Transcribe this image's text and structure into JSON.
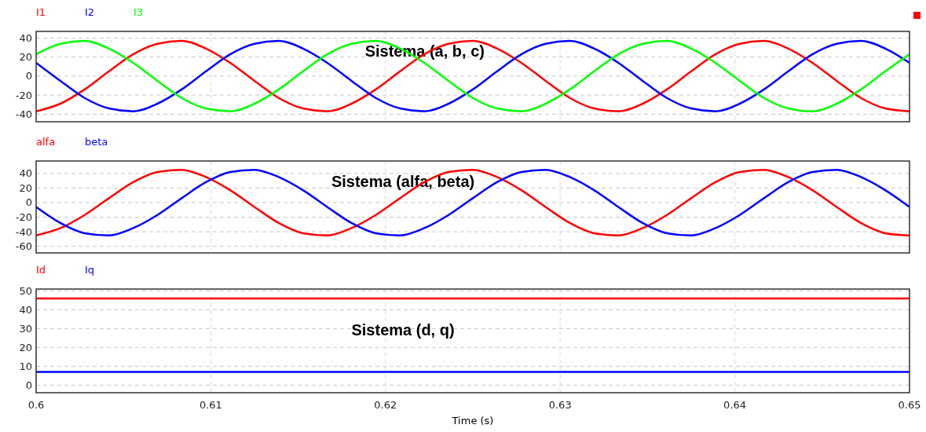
{
  "chart_data": [
    {
      "type": "line",
      "annotations": [
        "Sistema (a, b, c)"
      ],
      "xlim": [
        0.6,
        0.65
      ],
      "xticks": [
        0.6,
        0.61,
        0.62,
        0.63,
        0.64,
        0.65
      ],
      "ylim": [
        -48,
        47
      ],
      "yticks": [
        -40,
        -20,
        0,
        20,
        40
      ],
      "grid": true,
      "legend": "top left",
      "tick_labels": "y",
      "x": [
        0.6,
        0.601389,
        0.602778,
        0.604167,
        0.605556,
        0.606944,
        0.608333,
        0.609722,
        0.611111,
        0.6125,
        0.613889,
        0.615278,
        0.616667,
        0.618056,
        0.619444,
        0.620833,
        0.622222,
        0.623611,
        0.625,
        0.626389,
        0.627778,
        0.629167,
        0.630556,
        0.631944,
        0.633333,
        0.634722,
        0.636111,
        0.6375,
        0.638889,
        0.640278,
        0.641667,
        0.643056,
        0.644444,
        0.645833,
        0.647222,
        0.648611,
        0.65
      ],
      "series": [
        {
          "name": "I1",
          "color": "#ff0000",
          "values": [
            -37,
            -29,
            -14,
            5,
            23,
            34,
            37,
            29,
            14,
            -5,
            -23,
            -34,
            -37,
            -29,
            -14,
            5,
            23,
            34,
            37,
            29,
            14,
            -5,
            -23,
            -34,
            -37,
            -29,
            -14,
            5,
            23,
            34,
            37,
            29,
            14,
            -5,
            -23,
            -34,
            -37
          ]
        },
        {
          "name": "I2",
          "color": "#0000ff",
          "values": [
            14,
            -5,
            -23,
            -34,
            -37,
            -29,
            -14,
            5,
            23,
            34,
            37,
            29,
            14,
            -5,
            -23,
            -34,
            -37,
            -29,
            -14,
            5,
            23,
            34,
            37,
            29,
            14,
            -5,
            -23,
            -34,
            -37,
            -29,
            -14,
            5,
            23,
            34,
            37,
            29,
            14
          ]
        },
        {
          "name": "I3",
          "color": "#00ff00",
          "values": [
            23,
            34,
            37,
            29,
            14,
            -5,
            -23,
            -34,
            -37,
            -29,
            -14,
            5,
            23,
            34,
            37,
            29,
            14,
            -5,
            -23,
            -34,
            -37,
            -29,
            -14,
            5,
            23,
            34,
            37,
            29,
            14,
            -5,
            -23,
            -34,
            -37,
            -29,
            -14,
            5,
            23
          ]
        }
      ]
    },
    {
      "type": "line",
      "annotations": [
        "Sistema (alfa, beta)"
      ],
      "xlim": [
        0.6,
        0.65
      ],
      "xticks": [
        0.6,
        0.61,
        0.62,
        0.63,
        0.64,
        0.65
      ],
      "ylim": [
        -69,
        57
      ],
      "yticks": [
        -60,
        -40,
        -20,
        0,
        20,
        40
      ],
      "grid": true,
      "legend": "top left",
      "tick_labels": "y",
      "x": [
        0.6,
        0.601389,
        0.602778,
        0.604167,
        0.605556,
        0.606944,
        0.608333,
        0.609722,
        0.611111,
        0.6125,
        0.613889,
        0.615278,
        0.616667,
        0.618056,
        0.619444,
        0.620833,
        0.622222,
        0.623611,
        0.625,
        0.626389,
        0.627778,
        0.629167,
        0.630556,
        0.631944,
        0.633333,
        0.634722,
        0.636111,
        0.6375,
        0.638889,
        0.640278,
        0.641667,
        0.643056,
        0.644444,
        0.645833,
        0.647222,
        0.648611,
        0.65
      ],
      "series": [
        {
          "name": "alfa",
          "color": "#ff0000",
          "values": [
            -45,
            -35,
            -17,
            6,
            28,
            42,
            45,
            35,
            17,
            -6,
            -28,
            -42,
            -45,
            -35,
            -17,
            6,
            28,
            42,
            45,
            35,
            17,
            -6,
            -28,
            -42,
            -45,
            -35,
            -17,
            6,
            28,
            42,
            45,
            35,
            17,
            -6,
            -28,
            -42,
            -45
          ]
        },
        {
          "name": "beta",
          "color": "#0000ff",
          "values": [
            -6,
            -28,
            -42,
            -45,
            -35,
            -17,
            6,
            28,
            42,
            45,
            35,
            17,
            -6,
            -28,
            -42,
            -45,
            -35,
            -17,
            6,
            28,
            42,
            45,
            35,
            17,
            -6,
            -28,
            -42,
            -45,
            -35,
            -17,
            6,
            28,
            42,
            45,
            35,
            17,
            -6
          ]
        }
      ]
    },
    {
      "type": "line",
      "annotations": [
        "Sistema (d, q)"
      ],
      "xlabel": "Time (s)",
      "xlim": [
        0.6,
        0.65
      ],
      "xticks": [
        0.6,
        0.61,
        0.62,
        0.63,
        0.64,
        0.65
      ],
      "ylim": [
        -4,
        51
      ],
      "yticks": [
        0,
        10,
        20,
        30,
        40,
        50
      ],
      "grid": true,
      "legend": "top left",
      "x": [
        0.6,
        0.65
      ],
      "series": [
        {
          "name": "Id",
          "color": "#ff0000",
          "values": [
            46,
            46
          ]
        },
        {
          "name": "Iq",
          "color": "#0000ff",
          "values": [
            7,
            7
          ]
        }
      ]
    }
  ]
}
